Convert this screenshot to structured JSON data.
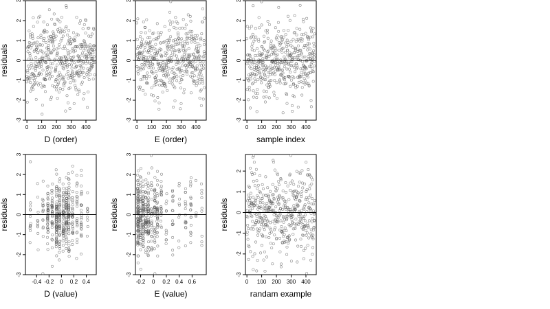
{
  "chart_data": [
    {
      "type": "scatter",
      "xlabel": "D (order)",
      "ylabel": "residuals",
      "xlim": [
        -10,
        470
      ],
      "ylim": [
        -3,
        3
      ],
      "xticks": [
        0,
        100,
        200,
        300,
        400
      ],
      "yticks": [
        -3,
        -2,
        -1,
        0,
        1,
        2,
        3
      ],
      "reference_line_y": 0,
      "n_points": 460,
      "spread_sd": 0.95,
      "seed": 11,
      "x_distribution": "index"
    },
    {
      "type": "scatter",
      "xlabel": "E (order)",
      "ylabel": "residuals",
      "xlim": [
        -10,
        470
      ],
      "ylim": [
        -3,
        3
      ],
      "xticks": [
        0,
        100,
        200,
        300,
        400
      ],
      "yticks": [
        -3,
        -2,
        -1,
        0,
        1,
        2,
        3
      ],
      "reference_line_y": 0,
      "n_points": 460,
      "spread_sd": 0.95,
      "seed": 23,
      "x_distribution": "index"
    },
    {
      "type": "scatter",
      "xlabel": "sample index",
      "ylabel": "residuals",
      "xlim": [
        -10,
        470
      ],
      "ylim": [
        -3,
        3
      ],
      "xticks": [
        0,
        100,
        200,
        300,
        400
      ],
      "yticks": [
        -3,
        -2,
        -1,
        0,
        1,
        2,
        3
      ],
      "reference_line_y": 0,
      "n_points": 460,
      "spread_sd": 0.95,
      "seed": 37,
      "x_distribution": "index"
    },
    {
      "type": "scatter",
      "xlabel": "D (value)",
      "ylabel": "residuals",
      "xlim": [
        -0.58,
        0.56
      ],
      "ylim": [
        -3,
        3
      ],
      "xticks": [
        -0.4,
        -0.2,
        0.0,
        0.2,
        0.4
      ],
      "yticks": [
        -3,
        -2,
        -1,
        0,
        1,
        2,
        3
      ],
      "reference_line_y": 0,
      "n_points": 460,
      "spread_sd": 0.95,
      "seed": 41,
      "x_distribution": "clustered",
      "x_clusters": [
        -0.5,
        -0.38,
        -0.3,
        -0.22,
        -0.15,
        -0.08,
        -0.03,
        0.03,
        0.08,
        0.12,
        0.18,
        0.25,
        0.32,
        0.42
      ],
      "x_cluster_weights": [
        1,
        1,
        2,
        3,
        3,
        4,
        5,
        4,
        5,
        4,
        3,
        2,
        2,
        1
      ]
    },
    {
      "type": "scatter",
      "xlabel": "E (value)",
      "ylabel": "residuals",
      "xlim": [
        -0.28,
        0.82
      ],
      "ylim": [
        -3,
        3
      ],
      "xticks": [
        -0.2,
        0.0,
        0.2,
        0.4,
        0.6
      ],
      "yticks": [
        -3,
        -2,
        -1,
        0,
        1,
        2,
        3
      ],
      "reference_line_y": 0,
      "n_points": 460,
      "spread_sd": 0.95,
      "seed": 53,
      "x_distribution": "clustered",
      "x_clusters": [
        -0.24,
        -0.2,
        -0.16,
        -0.12,
        -0.08,
        -0.03,
        0.02,
        0.06,
        0.12,
        0.2,
        0.3,
        0.4,
        0.5,
        0.58,
        0.66,
        0.75
      ],
      "x_cluster_weights": [
        9,
        7,
        6,
        6,
        5,
        5,
        4,
        4,
        2,
        2,
        1,
        1,
        2,
        2,
        1,
        1
      ]
    },
    {
      "type": "scatter",
      "xlabel": "randam example",
      "ylabel": "residuals",
      "xlim": [
        -10,
        470
      ],
      "ylim": [
        -3,
        2.8
      ],
      "xticks": [
        0,
        100,
        200,
        300,
        400
      ],
      "yticks": [
        -3,
        -2,
        -1,
        0,
        1,
        2
      ],
      "reference_line_y": 0,
      "n_points": 460,
      "spread_sd": 1.05,
      "seed": 67,
      "x_distribution": "index"
    }
  ]
}
